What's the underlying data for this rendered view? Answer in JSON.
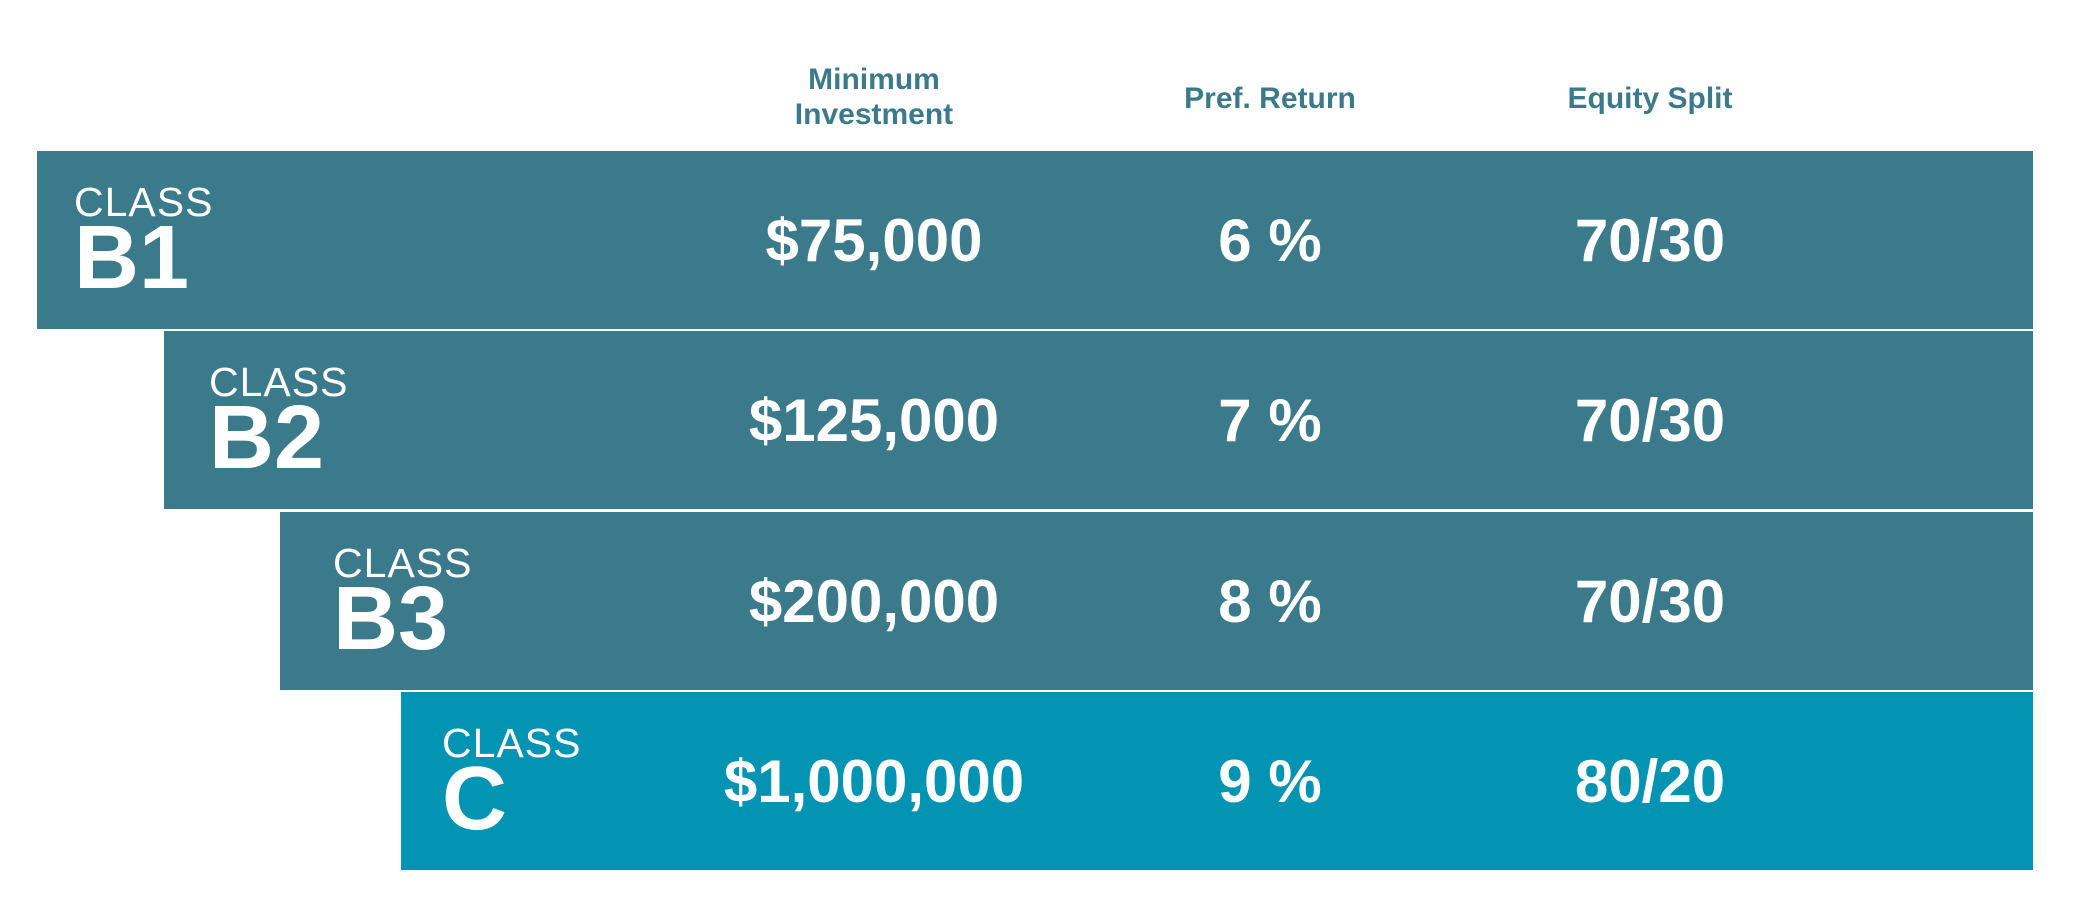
{
  "table": {
    "headers": [
      "Minimum Investment",
      "Pref. Return",
      "Equity Split"
    ],
    "header_color": "#3a7a8a",
    "rows": [
      {
        "label": "CLASS",
        "name": "B1",
        "cells": [
          "$75,000",
          "6 %",
          "70/30"
        ],
        "color": "#3a7a8a"
      },
      {
        "label": "CLASS",
        "name": "B2",
        "cells": [
          "$125,000",
          "7 %",
          "70/30"
        ],
        "color": "#3a7a8a"
      },
      {
        "label": "CLASS",
        "name": "B3",
        "cells": [
          "$200,000",
          "8 %",
          "70/30"
        ],
        "color": "#3a7a8a"
      },
      {
        "label": "CLASS",
        "name": "C",
        "cells": [
          "$1,000,000",
          "9 %",
          "80/20"
        ],
        "color": "#0394b4"
      }
    ]
  }
}
